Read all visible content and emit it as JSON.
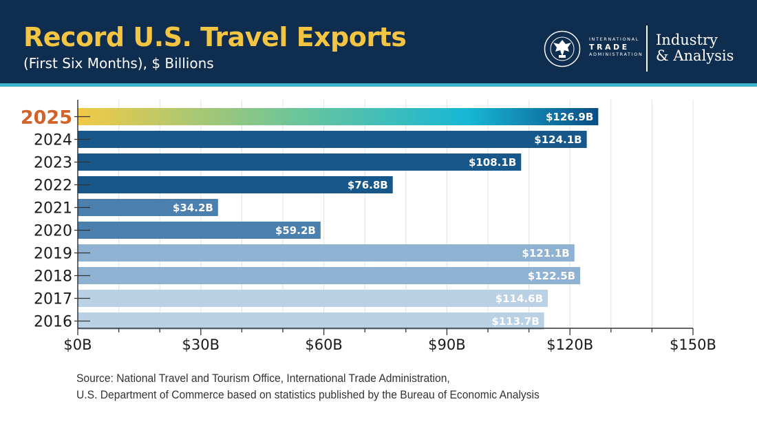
{
  "header": {
    "title": "Record U.S. Travel Exports",
    "subtitle": "(First Six Months), $ Billions",
    "agency_lines": [
      "INTERNATIONAL",
      "TRADE",
      "ADMINISTRATION"
    ],
    "unit_line1": "Industry",
    "unit_line2": "& Analysis",
    "seal_icon": "department-of-commerce-seal-icon"
  },
  "colors": {
    "header_bg": "#0f2d4e",
    "header_rule": "#3fb4cf",
    "title": "#f4c542",
    "highlight_year": "#d2622a",
    "bar_dark": "#18578a",
    "bar_medium": "#4b7fae",
    "bar_light": "#8fb2d3",
    "bar_pale": "#b9d0e5",
    "gradient_2025": [
      "#f2ca45",
      "#6cc59a",
      "#17b7d6",
      "#0a4d86"
    ]
  },
  "chart_data": {
    "type": "bar",
    "orientation": "horizontal",
    "title": "Record U.S. Travel Exports",
    "subtitle": "(First Six Months), $ Billions",
    "categories": [
      "2025",
      "2024",
      "2023",
      "2022",
      "2021",
      "2020",
      "2019",
      "2018",
      "2017",
      "2016"
    ],
    "values": [
      126.9,
      124.1,
      108.1,
      76.8,
      34.2,
      59.2,
      121.1,
      122.5,
      114.6,
      113.7
    ],
    "value_labels": [
      "$126.9B",
      "$124.1B",
      "$108.1B",
      "$76.8B",
      "$34.2B",
      "$59.2B",
      "$121.1B",
      "$122.5B",
      "$114.6B",
      "$113.7B"
    ],
    "bar_color_groups": [
      "gradient",
      "dark",
      "dark",
      "dark",
      "medium",
      "medium",
      "light",
      "light",
      "pale",
      "pale"
    ],
    "highlight_category": "2025",
    "xlim": [
      0,
      150
    ],
    "xticks": [
      0,
      30,
      60,
      90,
      120,
      150
    ],
    "xtick_labels": [
      "$0B",
      "$30B",
      "$60B",
      "$90B",
      "$120B",
      "$150B"
    ],
    "grid": true,
    "legend": "none"
  },
  "source": {
    "line1": "Source: National Travel and Tourism Office, International Trade Administration,",
    "line2": "U.S. Department of Commerce based on statistics published by the Bureau of Economic Analysis"
  }
}
